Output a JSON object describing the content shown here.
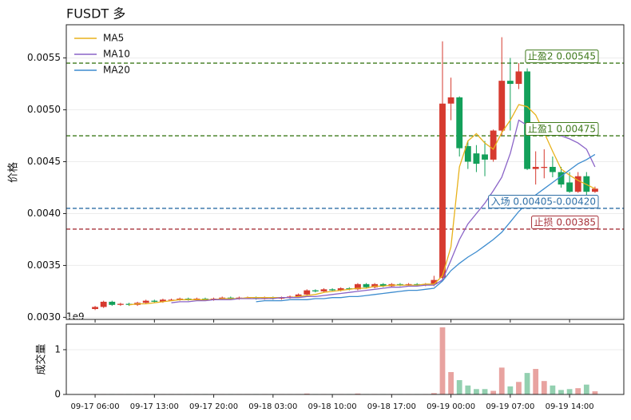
{
  "chart_data": {
    "type": "candlestick",
    "title": "FUSDT  多",
    "ylabel": "价格",
    "x": [
      "09-17 06:00",
      "09-17 07:00",
      "09-17 08:00",
      "09-17 09:00",
      "09-17 10:00",
      "09-17 11:00",
      "09-17 12:00",
      "09-17 13:00",
      "09-17 14:00",
      "09-17 15:00",
      "09-17 16:00",
      "09-17 17:00",
      "09-17 18:00",
      "09-17 19:00",
      "09-17 20:00",
      "09-17 21:00",
      "09-17 22:00",
      "09-17 23:00",
      "09-18 00:00",
      "09-18 01:00",
      "09-18 02:00",
      "09-18 03:00",
      "09-18 04:00",
      "09-18 05:00",
      "09-18 06:00",
      "09-18 07:00",
      "09-18 08:00",
      "09-18 09:00",
      "09-18 10:00",
      "09-18 11:00",
      "09-18 12:00",
      "09-18 13:00",
      "09-18 14:00",
      "09-18 15:00",
      "09-18 16:00",
      "09-18 17:00",
      "09-18 18:00",
      "09-18 19:00",
      "09-18 20:00",
      "09-18 21:00",
      "09-18 22:00",
      "09-18 23:00",
      "09-19 00:00",
      "09-19 01:00",
      "09-19 02:00",
      "09-19 03:00",
      "09-19 04:00",
      "09-19 05:00",
      "09-19 06:00",
      "09-19 07:00",
      "09-19 08:00",
      "09-19 09:00",
      "09-19 10:00",
      "09-19 11:00",
      "09-19 12:00",
      "09-19 13:00",
      "09-19 14:00",
      "09-19 15:00",
      "09-19 16:00",
      "09-19 17:00"
    ],
    "open": [
      0.00308,
      0.0031,
      0.00315,
      0.00312,
      0.00313,
      0.00312,
      0.00314,
      0.00316,
      0.00315,
      0.00317,
      0.00317,
      0.00318,
      0.00317,
      0.00318,
      0.00317,
      0.00318,
      0.00319,
      0.00318,
      0.00319,
      0.00319,
      0.00318,
      0.00319,
      0.00318,
      0.00319,
      0.0032,
      0.00322,
      0.00326,
      0.00325,
      0.00327,
      0.00326,
      0.00328,
      0.00327,
      0.00332,
      0.00329,
      0.00332,
      0.0033,
      0.00332,
      0.00331,
      0.00332,
      0.00331,
      0.00332,
      0.00338,
      0.00506,
      0.00512,
      0.00465,
      0.00458,
      0.00457,
      0.00452,
      0.0048,
      0.00528,
      0.00525,
      0.00537,
      0.00443,
      0.00444,
      0.00445,
      0.0044,
      0.0043,
      0.00421,
      0.00436,
      0.00421
    ],
    "high": [
      0.00311,
      0.00316,
      0.00316,
      0.00314,
      0.00314,
      0.00315,
      0.00317,
      0.00317,
      0.00318,
      0.00318,
      0.00319,
      0.00319,
      0.00319,
      0.00319,
      0.00319,
      0.0032,
      0.0032,
      0.0032,
      0.0032,
      0.0032,
      0.0032,
      0.0032,
      0.0032,
      0.00321,
      0.00323,
      0.00327,
      0.00327,
      0.00328,
      0.00328,
      0.00329,
      0.00329,
      0.00333,
      0.00333,
      0.00333,
      0.00333,
      0.00333,
      0.00333,
      0.00333,
      0.00333,
      0.00333,
      0.0034,
      0.00566,
      0.00531,
      0.00513,
      0.0047,
      0.00466,
      0.0047,
      0.00481,
      0.0057,
      0.0055,
      0.00545,
      0.0054,
      0.0046,
      0.00462,
      0.00455,
      0.00445,
      0.0044,
      0.0044,
      0.0044,
      0.00426
    ],
    "low": [
      0.00307,
      0.00309,
      0.00311,
      0.00311,
      0.00311,
      0.00311,
      0.00313,
      0.00314,
      0.00314,
      0.00316,
      0.00316,
      0.00316,
      0.00316,
      0.00316,
      0.00316,
      0.00317,
      0.00317,
      0.00317,
      0.00318,
      0.00317,
      0.00317,
      0.00317,
      0.00317,
      0.00318,
      0.00319,
      0.00321,
      0.00324,
      0.00324,
      0.00325,
      0.00325,
      0.00326,
      0.00326,
      0.00328,
      0.00328,
      0.00329,
      0.00329,
      0.0033,
      0.0033,
      0.0033,
      0.0033,
      0.0033,
      0.00335,
      0.0049,
      0.00455,
      0.00443,
      0.0044,
      0.00436,
      0.0045,
      0.00475,
      0.0048,
      0.0052,
      0.00442,
      0.00428,
      0.00434,
      0.00435,
      0.00425,
      0.0042,
      0.0042,
      0.00418,
      0.0042
    ],
    "close": [
      0.0031,
      0.00315,
      0.00312,
      0.00313,
      0.00312,
      0.00314,
      0.00316,
      0.00315,
      0.00317,
      0.00317,
      0.00318,
      0.00317,
      0.00318,
      0.00317,
      0.00318,
      0.00319,
      0.00318,
      0.00319,
      0.00319,
      0.00318,
      0.00319,
      0.00318,
      0.00319,
      0.0032,
      0.00322,
      0.00326,
      0.00325,
      0.00327,
      0.00326,
      0.00328,
      0.00327,
      0.00332,
      0.00329,
      0.00332,
      0.0033,
      0.00332,
      0.00331,
      0.00332,
      0.00331,
      0.00332,
      0.00336,
      0.00506,
      0.00512,
      0.00463,
      0.0045,
      0.00448,
      0.00452,
      0.0048,
      0.00528,
      0.00525,
      0.00537,
      0.00443,
      0.00445,
      0.00445,
      0.0044,
      0.00428,
      0.00421,
      0.00436,
      0.00421,
      0.00424
    ],
    "up_color": "#d63a2f",
    "down_color": "#13a05a",
    "series": [
      {
        "name": "MA5",
        "color": "#e8b21c",
        "values": [
          null,
          null,
          null,
          null,
          0.00312,
          0.00313,
          0.00313,
          0.00314,
          0.00315,
          0.00316,
          0.00317,
          0.00317,
          0.00317,
          0.00317,
          0.00317,
          0.00318,
          0.00318,
          0.00318,
          0.00319,
          0.00319,
          0.00319,
          0.00319,
          0.00319,
          0.00319,
          0.0032,
          0.00321,
          0.00322,
          0.00324,
          0.00325,
          0.00326,
          0.00327,
          0.00328,
          0.00328,
          0.0033,
          0.0033,
          0.00331,
          0.00331,
          0.00331,
          0.00331,
          0.00332,
          0.00332,
          0.0034,
          0.00368,
          0.00445,
          0.0047,
          0.00477,
          0.00468,
          0.00462,
          0.00478,
          0.0049,
          0.00505,
          0.00503,
          0.00495,
          0.00478,
          0.0046,
          0.00443,
          0.00437,
          0.00432,
          0.00428,
          0.00424
        ]
      },
      {
        "name": "MA10",
        "color": "#8a63c7",
        "values": [
          null,
          null,
          null,
          null,
          null,
          null,
          null,
          null,
          null,
          0.00314,
          0.00315,
          0.00315,
          0.00316,
          0.00316,
          0.00317,
          0.00317,
          0.00317,
          0.00318,
          0.00318,
          0.00318,
          0.00318,
          0.00318,
          0.00319,
          0.00319,
          0.00319,
          0.0032,
          0.0032,
          0.00321,
          0.00322,
          0.00323,
          0.00324,
          0.00325,
          0.00326,
          0.00327,
          0.00328,
          0.00329,
          0.00329,
          0.0033,
          0.0033,
          0.00331,
          0.00331,
          0.00336,
          0.00355,
          0.00375,
          0.0039,
          0.004,
          0.0041,
          0.00422,
          0.00435,
          0.00458,
          0.0049,
          0.00485,
          0.00482,
          0.0048,
          0.00477,
          0.00475,
          0.00472,
          0.00468,
          0.00462,
          0.00445
        ]
      },
      {
        "name": "MA20",
        "color": "#3d8ccf",
        "values": [
          null,
          null,
          null,
          null,
          null,
          null,
          null,
          null,
          null,
          null,
          null,
          null,
          null,
          null,
          null,
          null,
          null,
          null,
          null,
          0.00315,
          0.00316,
          0.00316,
          0.00316,
          0.00317,
          0.00317,
          0.00317,
          0.00318,
          0.00318,
          0.00319,
          0.00319,
          0.0032,
          0.0032,
          0.00321,
          0.00322,
          0.00323,
          0.00324,
          0.00325,
          0.00326,
          0.00326,
          0.00327,
          0.00328,
          0.00335,
          0.00345,
          0.00352,
          0.00358,
          0.00363,
          0.00369,
          0.00375,
          0.00382,
          0.00392,
          0.00402,
          0.0041,
          0.00418,
          0.00424,
          0.0043,
          0.00436,
          0.00442,
          0.00448,
          0.00452,
          0.00457
        ]
      }
    ],
    "levels": [
      {
        "label": "止盈2 0.00545",
        "value": 0.00545,
        "color": "#3f7a1c"
      },
      {
        "label": "止盈1 0.00475",
        "value": 0.00475,
        "color": "#3f7a1c"
      },
      {
        "label": "入场 0.00405-0.00420",
        "value": 0.00405,
        "color": "#2f6fa6"
      },
      {
        "label": "止损 0.00385",
        "value": 0.00385,
        "color": "#a8343c"
      }
    ],
    "xlim": [
      "09-17 02:36",
      "09-19 20:24"
    ],
    "xticks": [
      "09-17 06:00",
      "09-17 13:00",
      "09-17 20:00",
      "09-18 03:00",
      "09-18 10:00",
      "09-18 17:00",
      "09-19 00:00",
      "09-19 07:00",
      "09-19 14:00"
    ],
    "ylim": [
      0.00298,
      0.00582
    ],
    "yticks": [
      {
        "value": 0.003,
        "label": "0.0030"
      },
      0.0035,
      {
        "value": 0.004,
        "label": "0.0040"
      },
      0.0045,
      {
        "value": 0.005,
        "label": "0.0050"
      },
      0.0055
    ],
    "grid": true,
    "legend": "upper left",
    "volume": {
      "ylabel": "成交量",
      "offset_label": "1e9",
      "values": [
        0.01,
        0.01,
        0.01,
        0.01,
        0.01,
        0.01,
        0.01,
        0.01,
        0.01,
        0.01,
        0.01,
        0.01,
        0.01,
        0.01,
        0.01,
        0.01,
        0.01,
        0.01,
        0.01,
        0.01,
        0.01,
        0.01,
        0.01,
        0.01,
        0.01,
        0.02,
        0.01,
        0.01,
        0.01,
        0.01,
        0.01,
        0.02,
        0.01,
        0.01,
        0.01,
        0.01,
        0.01,
        0.01,
        0.01,
        0.01,
        0.03,
        1.5,
        0.5,
        0.32,
        0.2,
        0.12,
        0.12,
        0.08,
        0.6,
        0.18,
        0.28,
        0.48,
        0.57,
        0.3,
        0.2,
        0.1,
        0.12,
        0.14,
        0.22,
        0.07
      ],
      "up_color": "#e8a3a0",
      "down_color": "#93d0b0",
      "ylim": [
        0,
        1.57
      ],
      "yticks": [
        0,
        1
      ]
    }
  }
}
